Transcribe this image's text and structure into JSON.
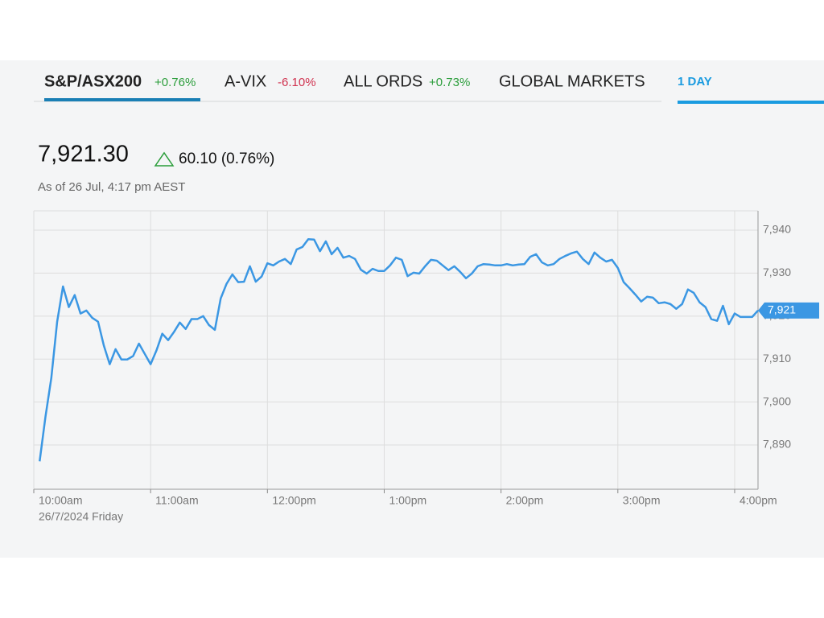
{
  "tabs": [
    {
      "name": "S&P/ASX200",
      "change": "+0.76%",
      "color": "#2a9d3a"
    },
    {
      "name": "A-VIX",
      "change": "-6.10%",
      "color": "#d0324f"
    },
    {
      "name": "ALL ORDS",
      "change": "+0.73%",
      "color": "#2a9d3a"
    },
    {
      "name": "GLOBAL MARKETS"
    }
  ],
  "range_tab": "1 DAY",
  "quote": {
    "price": "7,921.30",
    "change": "60.10 (0.76%)",
    "as_of": "As of 26 Jul, 4:17 pm AEST"
  },
  "chart_data": {
    "type": "line",
    "color": "#3b97e3",
    "grid": true,
    "date_label": "26/7/2024 Friday",
    "last_label": "7,921",
    "x": [
      "10:03",
      "10:06",
      "10:09",
      "10:12",
      "10:15",
      "10:18",
      "10:21",
      "10:24",
      "10:27",
      "10:30",
      "10:33",
      "10:36",
      "10:39",
      "10:42",
      "10:45",
      "10:48",
      "10:51",
      "10:54",
      "10:57",
      "11:00",
      "11:03",
      "11:06",
      "11:09",
      "11:12",
      "11:15",
      "11:18",
      "11:21",
      "11:24",
      "11:27",
      "11:30",
      "11:33",
      "11:36",
      "11:39",
      "11:42",
      "11:45",
      "11:48",
      "11:51",
      "11:54",
      "11:57",
      "12:00",
      "12:03",
      "12:06",
      "12:09",
      "12:12",
      "12:15",
      "12:18",
      "12:21",
      "12:24",
      "12:27",
      "12:30",
      "12:33",
      "12:36",
      "12:39",
      "12:42",
      "12:45",
      "12:48",
      "12:51",
      "12:54",
      "12:57",
      "13:00",
      "13:03",
      "13:06",
      "13:09",
      "13:12",
      "13:15",
      "13:18",
      "13:21",
      "13:24",
      "13:27",
      "13:30",
      "13:33",
      "13:36",
      "13:39",
      "13:42",
      "13:45",
      "13:48",
      "13:51",
      "13:54",
      "13:57",
      "14:00",
      "14:03",
      "14:06",
      "14:09",
      "14:12",
      "14:15",
      "14:18",
      "14:21",
      "14:24",
      "14:27",
      "14:30",
      "14:33",
      "14:36",
      "14:39",
      "14:42",
      "14:45",
      "14:48",
      "14:51",
      "14:54",
      "14:57",
      "15:00",
      "15:03",
      "15:06",
      "15:09",
      "15:12",
      "15:15",
      "15:18",
      "15:21",
      "15:24",
      "15:27",
      "15:30",
      "15:33",
      "15:36",
      "15:39",
      "15:42",
      "15:45",
      "15:48",
      "15:51",
      "15:54",
      "15:57",
      "16:00",
      "16:03",
      "16:06",
      "16:09",
      "16:12"
    ],
    "values": [
      7886.2,
      7896.6,
      7905.6,
      7918.7,
      7926.9,
      7922.1,
      7924.9,
      7920.6,
      7921.3,
      7919.6,
      7918.7,
      7913.1,
      7908.8,
      7912.3,
      7909.9,
      7909.9,
      7910.7,
      7913.6,
      7911.2,
      7908.8,
      7912.0,
      7915.9,
      7914.4,
      7916.3,
      7918.5,
      7917.0,
      7919.3,
      7919.3,
      7920.0,
      7917.9,
      7916.8,
      7924.1,
      7927.5,
      7929.7,
      7927.9,
      7928.0,
      7931.6,
      7928.0,
      7929.2,
      7932.3,
      7931.8,
      7932.7,
      7933.3,
      7932.1,
      7935.5,
      7936.1,
      7937.9,
      7937.8,
      7935.1,
      7937.4,
      7934.4,
      7935.9,
      7933.6,
      7934.0,
      7933.3,
      7930.8,
      7929.9,
      7931.0,
      7930.5,
      7930.5,
      7931.8,
      7933.6,
      7933.1,
      7929.3,
      7930.1,
      7929.9,
      7931.6,
      7933.1,
      7932.9,
      7931.8,
      7930.7,
      7931.6,
      7930.3,
      7928.8,
      7929.9,
      7931.6,
      7932.1,
      7932.0,
      7931.8,
      7931.8,
      7932.1,
      7931.8,
      7932.0,
      7932.1,
      7933.8,
      7934.4,
      7932.5,
      7931.8,
      7932.1,
      7933.3,
      7934.0,
      7934.6,
      7935.0,
      7933.3,
      7932.1,
      7934.8,
      7933.6,
      7932.7,
      7933.1,
      7931.2,
      7927.9,
      7926.5,
      7925.0,
      7923.4,
      7924.5,
      7924.3,
      7923.0,
      7923.2,
      7922.8,
      7921.7,
      7922.8,
      7926.2,
      7925.4,
      7923.2,
      7922.1,
      7919.3,
      7918.9,
      7922.4,
      7918.1,
      7920.6,
      7919.8,
      7919.8,
      7919.8,
      7921.3
    ],
    "xlim": [
      "10:00",
      "16:12"
    ],
    "xticks": [
      {
        "value": "10:00",
        "label": "10:00am"
      },
      {
        "value": "11:00",
        "label": "11:00am"
      },
      {
        "value": "12:00",
        "label": "12:00pm"
      },
      {
        "value": "13:00",
        "label": "1:00pm"
      },
      {
        "value": "14:00",
        "label": "2:00pm"
      },
      {
        "value": "15:00",
        "label": "3:00pm"
      },
      {
        "value": "16:00",
        "label": "4:00pm"
      }
    ],
    "ylim": [
      7879.7,
      7944.5
    ],
    "yticks": [
      {
        "value": 7890,
        "label": "7,890"
      },
      {
        "value": 7900,
        "label": "7,900"
      },
      {
        "value": 7910,
        "label": "7,910"
      },
      {
        "value": 7920,
        "label": "7,920"
      },
      {
        "value": 7930,
        "label": "7,930"
      },
      {
        "value": 7940,
        "label": "7,940"
      }
    ]
  }
}
